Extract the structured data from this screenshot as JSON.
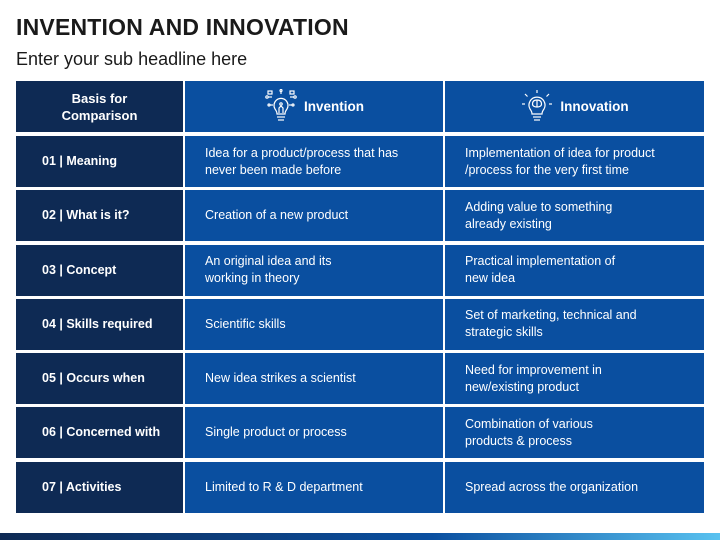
{
  "header": {
    "title": "INVENTION AND INNOVATION",
    "subtitle": "Enter your sub headline here"
  },
  "table": {
    "columns": {
      "basis": "Basis for Comparison",
      "invention": "Invention",
      "innovation": "Innovation"
    },
    "rows": [
      {
        "basis": "01 | Meaning",
        "invention": "Idea for a product/process  that has never been made before",
        "innovation": "Implementation of idea for product /process for the very first time"
      },
      {
        "basis": "02 | What is it?",
        "invention": "Creation of a new product",
        "innovation": "Adding value to something already existing"
      },
      {
        "basis": "03 | Concept",
        "invention": "An original idea and its working in theory",
        "innovation": "Practical implementation  of new idea"
      },
      {
        "basis": "04 | Skills required",
        "invention": "Scientific skills",
        "innovation": "Set of marketing, technical and strategic skills"
      },
      {
        "basis": "05 | Occurs when",
        "invention": "New idea strikes a scientist",
        "innovation": "Need for improvement in new/existing product"
      },
      {
        "basis": "06 | Concerned with",
        "invention": "Single product or process",
        "innovation": "Combination of various products & process"
      },
      {
        "basis": "07 | Activities",
        "invention": "Limited to R & D department",
        "innovation": "Spread across the organization"
      }
    ]
  },
  "icons": {
    "invention": "circuit-bulb-icon",
    "innovation": "brain-bulb-icon"
  },
  "colors": {
    "dark_navy": "#0e2a54",
    "blue": "#0a4fa0",
    "accent_light": "#59c2f0"
  }
}
